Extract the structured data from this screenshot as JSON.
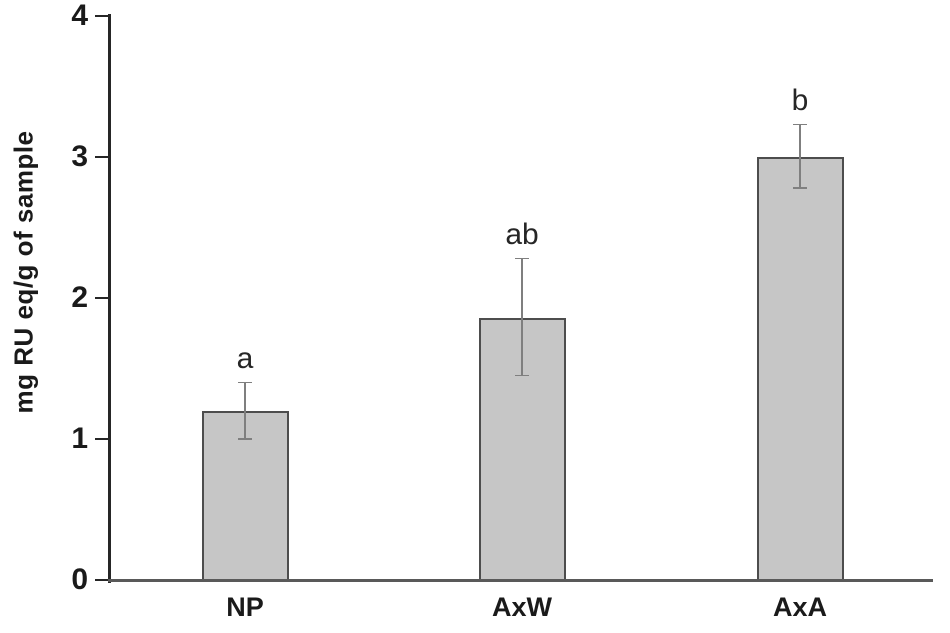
{
  "figure": {
    "background": "#ffffff"
  },
  "chart_data": {
    "type": "bar",
    "title": "",
    "xlabel": "",
    "ylabel": "mg RU eq/g of sample",
    "ylim": [
      0,
      4
    ],
    "yticks": [
      "0",
      "1",
      "2",
      "3",
      "4"
    ],
    "grid": false,
    "legend_position": "none",
    "categories": [
      "NP",
      "AxW",
      "AxA"
    ],
    "values": [
      1.2,
      1.86,
      3.0
    ],
    "error_upper": [
      1.4,
      2.28,
      3.23
    ],
    "error_lower": [
      1.0,
      1.45,
      2.78
    ],
    "significance_letters": [
      "a",
      "ab",
      "b"
    ],
    "colors": {
      "bar_fill": "#c6c6c6",
      "bar_border": "#4d4d4d",
      "error_bar": "#7f7f7f",
      "y_axis_line": "#262626",
      "x_axis_line": "#595959",
      "text": "#1a1a1a"
    }
  }
}
